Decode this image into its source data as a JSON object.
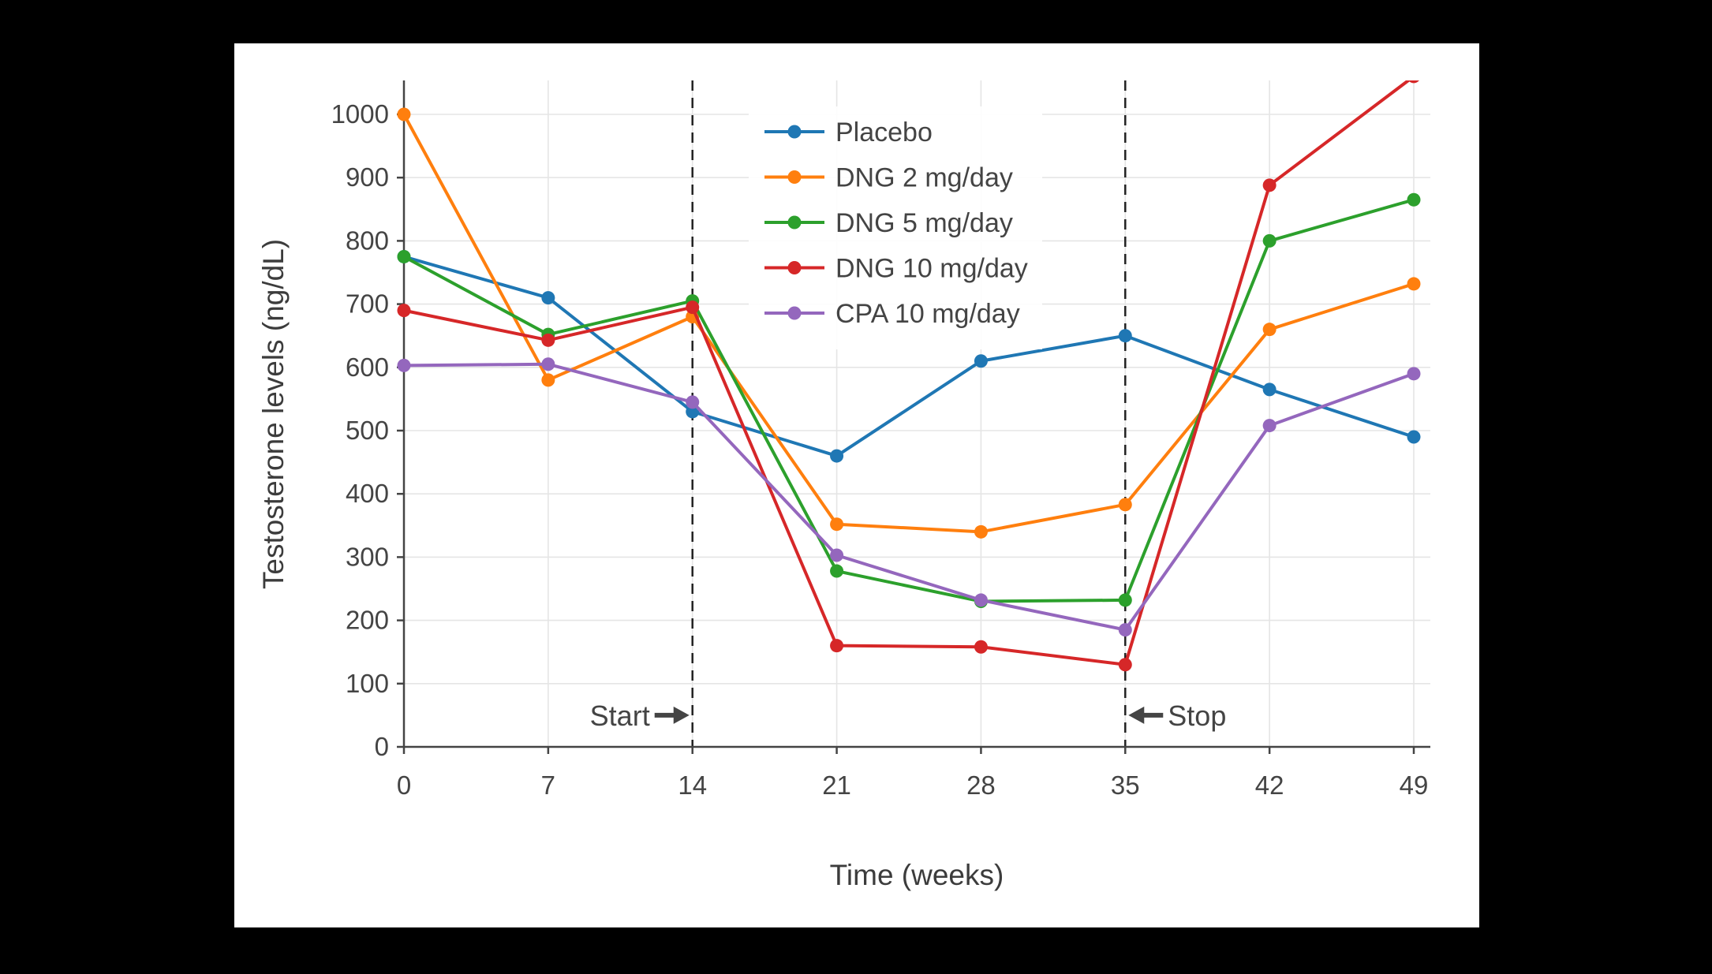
{
  "page": {
    "background_color": "#000000",
    "panel_color": "#ffffff"
  },
  "chart_data": {
    "type": "line",
    "title": "",
    "xlabel": "Time (weeks)",
    "ylabel": "Testosterone levels (ng/dL)",
    "x": [
      0,
      7,
      14,
      21,
      28,
      35,
      42,
      49
    ],
    "xlim": [
      0,
      49
    ],
    "ylim": [
      0,
      1050
    ],
    "yticks": [
      0,
      100,
      200,
      300,
      400,
      500,
      600,
      700,
      800,
      900,
      1000
    ],
    "grid": true,
    "grid_color": "#e5e5e5",
    "axis_color": "#444444",
    "legend_position": "top-center-inside",
    "series": [
      {
        "name": "Placebo",
        "color": "#1f77b4",
        "values": [
          775,
          710,
          530,
          460,
          610,
          650,
          565,
          490
        ]
      },
      {
        "name": "DNG 2 mg/day",
        "color": "#ff7f0e",
        "values": [
          1000,
          580,
          680,
          352,
          340,
          383,
          660,
          732
        ]
      },
      {
        "name": "DNG 5 mg/day",
        "color": "#2ca02c",
        "values": [
          775,
          652,
          705,
          278,
          230,
          232,
          800,
          865
        ]
      },
      {
        "name": "DNG 10 mg/day",
        "color": "#d62728",
        "values": [
          690,
          643,
          695,
          160,
          158,
          130,
          888,
          1060
        ]
      },
      {
        "name": "CPA 10 mg/day",
        "color": "#9467bd",
        "values": [
          603,
          605,
          545,
          303,
          232,
          185,
          508,
          590
        ]
      }
    ],
    "vlines": [
      14,
      35
    ],
    "annotations": [
      {
        "label": "Start",
        "week": 14,
        "side": "left",
        "y": 50
      },
      {
        "label": "Stop",
        "week": 35,
        "side": "right",
        "y": 50
      }
    ]
  }
}
